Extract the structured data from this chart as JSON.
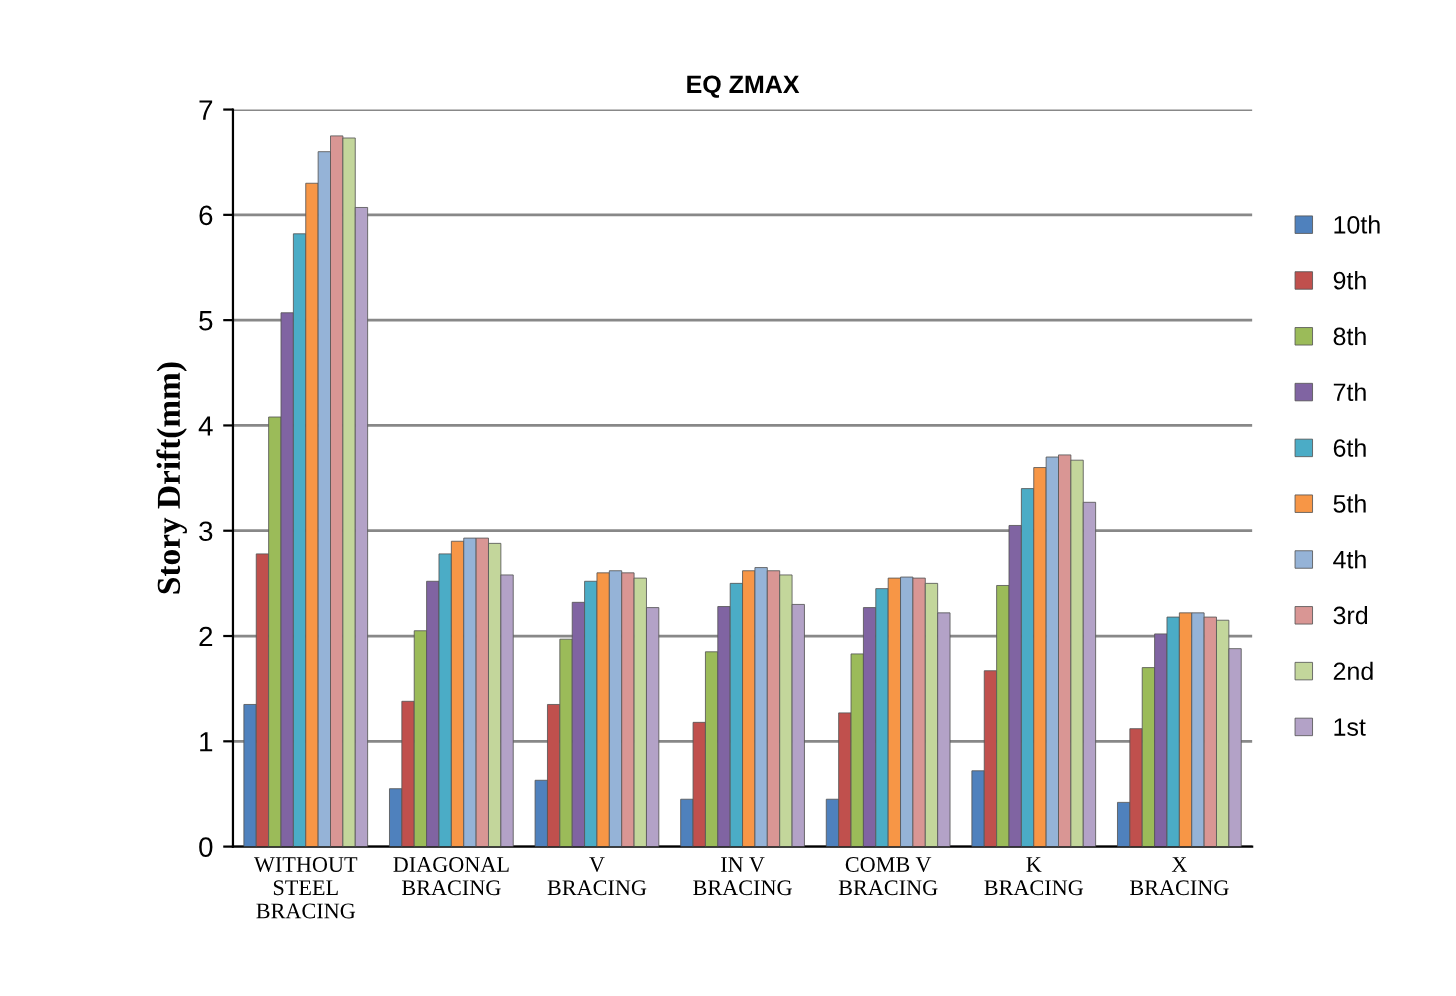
{
  "chart_data": {
    "type": "bar",
    "title": "EQ ZMAX",
    "ylabel": "Story Drift(mm)",
    "categories": [
      "WITHOUT\nSTEEL\nBRACING",
      "DIAGONAL\nBRACING",
      "V\nBRACING",
      "IN V\nBRACING",
      "COMB V\nBRACING",
      "K\nBRACING",
      "X\nBRACING"
    ],
    "series": [
      {
        "name": "10th",
        "color": "#4f81bd",
        "values": [
          1.35,
          0.55,
          0.63,
          0.45,
          0.45,
          0.72,
          0.42
        ]
      },
      {
        "name": "9th",
        "color": "#c0504d",
        "values": [
          2.78,
          1.38,
          1.35,
          1.18,
          1.27,
          1.67,
          1.12
        ]
      },
      {
        "name": "8th",
        "color": "#9bbb59",
        "values": [
          4.08,
          2.05,
          1.97,
          1.85,
          1.83,
          2.48,
          1.7
        ]
      },
      {
        "name": "7th",
        "color": "#8064a2",
        "values": [
          5.07,
          2.52,
          2.32,
          2.28,
          2.27,
          3.05,
          2.02
        ]
      },
      {
        "name": "6th",
        "color": "#4bacc6",
        "values": [
          5.82,
          2.78,
          2.52,
          2.5,
          2.45,
          3.4,
          2.18
        ]
      },
      {
        "name": "5th",
        "color": "#f79646",
        "values": [
          6.3,
          2.9,
          2.6,
          2.62,
          2.55,
          3.6,
          2.22
        ]
      },
      {
        "name": "4th",
        "color": "#95b3d7",
        "values": [
          6.6,
          2.93,
          2.62,
          2.65,
          2.56,
          3.7,
          2.22
        ]
      },
      {
        "name": "3rd",
        "color": "#d99694",
        "values": [
          6.75,
          2.93,
          2.6,
          2.62,
          2.55,
          3.72,
          2.18
        ]
      },
      {
        "name": "2nd",
        "color": "#c3d69b",
        "values": [
          6.73,
          2.88,
          2.55,
          2.58,
          2.5,
          3.67,
          2.15
        ]
      },
      {
        "name": "1st",
        "color": "#b3a2c7",
        "values": [
          6.07,
          2.58,
          2.27,
          2.3,
          2.22,
          3.27,
          1.88
        ]
      }
    ],
    "ylim": [
      0,
      7
    ],
    "yticks": [
      0,
      1,
      2,
      3,
      4,
      5,
      6,
      7
    ],
    "grid": "y",
    "legend": "right"
  }
}
